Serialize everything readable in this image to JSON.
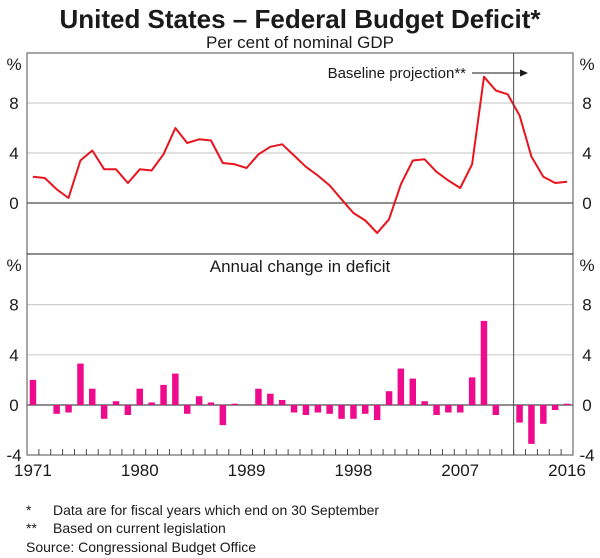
{
  "chart_data": {
    "title": "United States – Federal Budget Deficit*",
    "subtitle": "Per cent of nominal GDP",
    "x_tick_labels": [
      "1971",
      "1980",
      "1989",
      "1998",
      "2007",
      "2016"
    ],
    "years": [
      1971,
      1972,
      1973,
      1974,
      1975,
      1976,
      1977,
      1978,
      1979,
      1980,
      1981,
      1982,
      1983,
      1984,
      1985,
      1986,
      1987,
      1988,
      1989,
      1990,
      1991,
      1992,
      1993,
      1994,
      1995,
      1996,
      1997,
      1998,
      1999,
      2000,
      2001,
      2002,
      2003,
      2004,
      2005,
      2006,
      2007,
      2008,
      2009,
      2010,
      2011,
      2012,
      2013,
      2014,
      2015,
      2016
    ],
    "xlim": [
      1971,
      2016
    ],
    "projection_start_year": 2012,
    "annotation": "Baseline projection**",
    "panels": [
      {
        "type": "line",
        "title": "",
        "ylabel": "%",
        "ylim": [
          -4,
          12
        ],
        "yticks": [
          "8",
          "4",
          "0"
        ],
        "ytick_values": [
          8,
          4,
          0
        ],
        "grid": true,
        "series": [
          {
            "name": "Federal budget deficit",
            "color": "#e8141e",
            "values": [
              2.1,
              2.0,
              1.1,
              0.4,
              3.4,
              4.2,
              2.7,
              2.7,
              1.6,
              2.7,
              2.6,
              3.9,
              6.0,
              4.8,
              5.1,
              5.0,
              3.2,
              3.1,
              2.8,
              3.9,
              4.5,
              4.7,
              3.8,
              2.9,
              2.2,
              1.4,
              0.3,
              -0.8,
              -1.4,
              -2.4,
              -1.3,
              1.5,
              3.4,
              3.5,
              2.5,
              1.8,
              1.2,
              3.1,
              10.1,
              9.0,
              8.7,
              7.0,
              3.7,
              2.1,
              1.6,
              1.7
            ]
          }
        ]
      },
      {
        "type": "bar",
        "title": "Annual change in deficit",
        "ylabel": "%",
        "ylim": [
          -4,
          12
        ],
        "yticks": [
          "8",
          "4",
          "0",
          "-4"
        ],
        "ytick_values": [
          8,
          4,
          0,
          -4
        ],
        "grid": true,
        "series": [
          {
            "name": "Annual change in deficit",
            "color": "#ee0a8c",
            "values": [
              2.0,
              0.0,
              -0.7,
              -0.6,
              3.3,
              1.3,
              -1.1,
              0.3,
              -0.8,
              1.3,
              0.2,
              1.6,
              2.5,
              -0.7,
              0.7,
              0.2,
              -1.6,
              0.1,
              0.0,
              1.3,
              0.9,
              0.4,
              -0.6,
              -0.8,
              -0.6,
              -0.7,
              -1.1,
              -1.1,
              -0.7,
              -1.2,
              1.1,
              2.9,
              2.1,
              0.3,
              -0.8,
              -0.6,
              -0.6,
              2.2,
              6.7,
              -0.8,
              0.0,
              -1.4,
              -3.1,
              -1.5,
              -0.4,
              0.1
            ]
          }
        ]
      }
    ],
    "footnotes": [
      {
        "mark": "*",
        "text": "Data are for fiscal years which end on 30 September"
      },
      {
        "mark": "**",
        "text": "Based on current legislation"
      }
    ],
    "source": "Source: Congressional Budget Office"
  }
}
